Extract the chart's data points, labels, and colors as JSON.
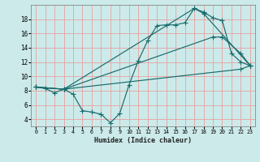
{
  "xlabel": "Humidex (Indice chaleur)",
  "bg_color": "#cceaea",
  "grid_color": "#e8a0a0",
  "line_color": "#1a6b6b",
  "xlim": [
    -0.5,
    23.5
  ],
  "ylim": [
    3.0,
    20.0
  ],
  "yticks": [
    4,
    6,
    8,
    10,
    12,
    14,
    16,
    18
  ],
  "xticks": [
    0,
    1,
    2,
    3,
    4,
    5,
    6,
    7,
    8,
    9,
    10,
    11,
    12,
    13,
    14,
    15,
    16,
    17,
    18,
    19,
    20,
    21,
    22,
    23
  ],
  "line1_x": [
    0,
    1,
    2,
    3,
    4,
    5,
    6,
    7,
    8,
    9,
    10,
    11,
    12,
    13,
    14,
    15,
    16,
    17,
    18,
    19,
    20,
    21,
    22,
    23
  ],
  "line1_y": [
    8.5,
    8.3,
    7.7,
    8.2,
    7.5,
    5.2,
    5.0,
    4.7,
    3.5,
    4.8,
    8.8,
    12.2,
    15.0,
    17.1,
    17.2,
    17.2,
    17.5,
    19.5,
    19.0,
    18.2,
    17.8,
    13.2,
    12.0,
    11.5
  ],
  "line2_x": [
    0,
    3,
    17,
    18,
    23
  ],
  "line2_y": [
    8.5,
    8.2,
    19.5,
    18.8,
    11.5
  ],
  "line3_x": [
    0,
    3,
    19,
    20,
    22,
    23
  ],
  "line3_y": [
    8.5,
    8.2,
    15.5,
    15.5,
    13.2,
    11.5
  ],
  "line4_x": [
    0,
    3,
    22,
    23
  ],
  "line4_y": [
    8.5,
    8.2,
    11.0,
    11.5
  ]
}
